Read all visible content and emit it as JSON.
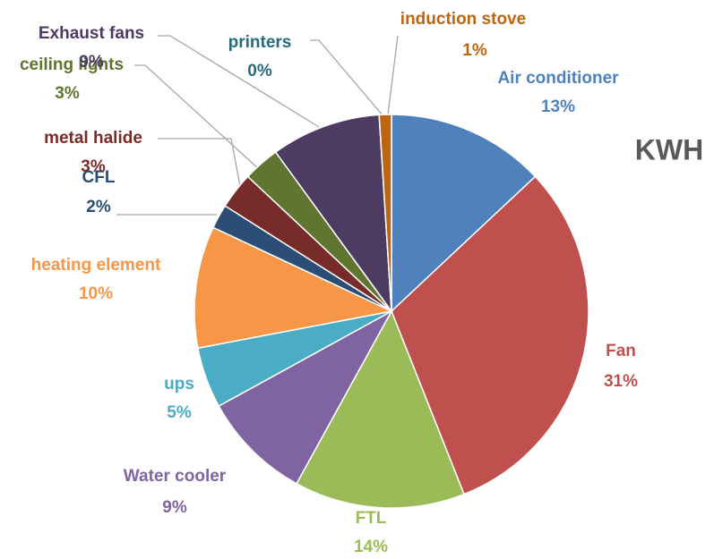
{
  "chart_data": {
    "type": "pie",
    "title": "KWH",
    "categories": [
      "Air conditioner",
      "Fan",
      "FTL",
      "Water cooler",
      "ups",
      "heating element",
      "CFL",
      "metal halide",
      "ceiling lights",
      "Exhaust fans",
      "printers",
      "induction stove"
    ],
    "values": [
      13,
      31,
      14,
      9,
      5,
      10,
      2,
      3,
      3,
      9,
      0,
      1
    ],
    "value_labels": [
      "13%",
      "31%",
      "14%",
      "9%",
      "5%",
      "10%",
      "2%",
      "3%",
      "3%",
      "9%",
      "0%",
      "1%"
    ],
    "colors": [
      "#4f81bd",
      "#c0504d",
      "#9bbb59",
      "#8064a2",
      "#4bacc6",
      "#f79646",
      "#2c4d75",
      "#772c2a",
      "#5f7530",
      "#4d3b62",
      "#276a7c",
      "#c0650f"
    ]
  }
}
